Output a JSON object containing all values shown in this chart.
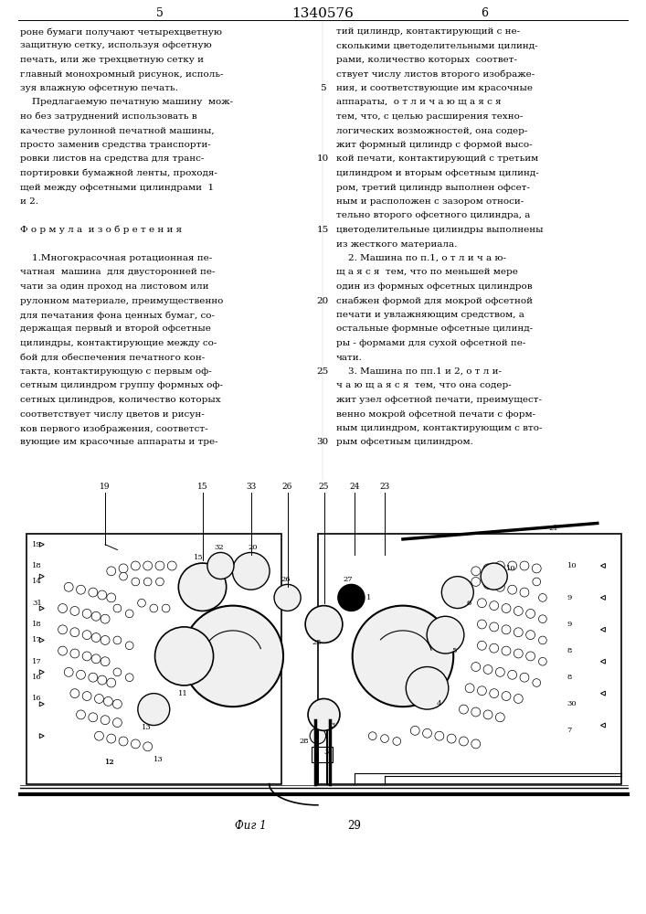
{
  "bg_color": "#ffffff",
  "page_number_left": "5",
  "page_number_center": "1340576",
  "page_number_right": "6",
  "col_left_lines": [
    "роне бумаги получают четырехцветную",
    "защитную сетку, используя офсетную",
    "печать, или же трехцветную сетку и",
    "главный монохромный рисунок, исполь-",
    "зуя влажную офсетную печать.",
    "    Предлагаемую печатную машину  мож-",
    "но без затруднений использовать в",
    "качестве рулонной печатной машины,",
    "просто заменив средства транспорти-",
    "ровки листов на средства для транс-",
    "портировки бумажной ленты, проходя-",
    "щей между офсетными цилиндрами  1",
    "и 2.",
    "",
    "Ф о р м у л а  и з о б р е т е н и я",
    "",
    "    1.Многокрасочная ротационная пе-",
    "чатная  машина  для двусторонней пе-",
    "чати за один проход на листовом или",
    "рулонном материале, преимущественно",
    "для печатания фона ценных бумаг, со-",
    "держащая первый и второй офсетные",
    "цилиндры, контактирующие между со-",
    "бой для обеспечения печатного кон-",
    "такта, контактирующую с первым оф-",
    "сетным цилиндром группу формных оф-",
    "сетных цилиндров, количество которых",
    "соответствует числу цветов и рисун-",
    "ков первого изображения, соответст-",
    "вующие им красочные аппараты и тре-"
  ],
  "col_right_lines": [
    "тий цилиндр, контактирующий с не-",
    "сколькими цветоделительными цилинд-",
    "рами, количество которых  соответ-",
    "ствует числу листов второго изображе-",
    "ния, и соответствующие им красочные",
    "аппараты,  о т л и ч а ю щ а я с я",
    "тем, что, с целью расширения техно-",
    "логических возможностей, она содер-",
    "жит формный цилиндр с формой высо-",
    "кой печати, контактирующий с третьим",
    "цилиндром и вторым офсетным цилинд-",
    "ром, третий цилиндр выполнен офсет-",
    "ным и расположен с зазором относи-",
    "тельно второго офсетного цилиндра, а",
    "цветоделительные цилиндры выполнены",
    "из жесткого материала.",
    "    2. Машина по п.1, о т л и ч а ю-",
    "щ а я с я  тем, что по меньшей мере",
    "один из формных офсетных цилиндров",
    "снабжен формой для мокрой офсетной",
    "печати и увлажняющим средством, а",
    "остальные формные офсетные цилинд-",
    "ры - формами для сухой офсетной пе-",
    "чати.",
    "    3. Машина по пп.1 и 2, о т л и-",
    "ч а ю щ а я с я  тем, что она содер-",
    "жит узел офсетной печати, преимущест-",
    "венно мокрой офсетной печати с форм-",
    "ным цилиндром, контактирующим с вто-",
    "рым офсетным цилиндром."
  ],
  "line_numbers": {
    "4": "5",
    "9": "10",
    "14": "15",
    "19": "20",
    "24": "25",
    "29": "30"
  },
  "fig_caption": "Фиг 1",
  "fig_label": "29"
}
